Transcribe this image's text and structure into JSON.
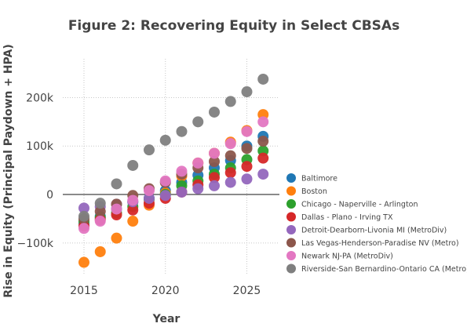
{
  "chart_data": {
    "type": "scatter",
    "title": "Figure 2: Recovering Equity in Select CBSAs",
    "xlabel": "Year",
    "ylabel": "Rise in Equity (Principal Paydown + HPA)",
    "xlim": [
      2013.7,
      2027
    ],
    "ylim": [
      -165000,
      280000
    ],
    "x_ticks": [
      2015,
      2020,
      2025
    ],
    "x_tick_labels": [
      "2015",
      "2020",
      "2025"
    ],
    "y_ticks": [
      -100000,
      0,
      100000,
      200000
    ],
    "y_tick_labels": [
      "−100k",
      "0",
      "100k",
      "200k"
    ],
    "grid": true,
    "legend_position": "right",
    "x": [
      2015,
      2016,
      2017,
      2018,
      2019,
      2020,
      2021,
      2022,
      2023,
      2024,
      2025,
      2026
    ],
    "series": [
      {
        "name": "Baltimore",
        "color": "#1f77b4",
        "values": [
          -60000,
          -45000,
          -30000,
          -15000,
          -8000,
          8000,
          25000,
          40000,
          55000,
          70000,
          100000,
          120000
        ]
      },
      {
        "name": "Boston",
        "color": "#ff7f0e",
        "values": [
          -140000,
          -118000,
          -90000,
          -55000,
          -22000,
          3000,
          38000,
          65000,
          85000,
          108000,
          132000,
          165000
        ]
      },
      {
        "name": "Chicago - Naperville - Arlington",
        "color": "#2ca02c",
        "values": [
          -55000,
          -48000,
          -38000,
          -25000,
          -10000,
          0,
          18000,
          28000,
          42000,
          55000,
          72000,
          90000
        ]
      },
      {
        "name": "Dallas - Plano - Irving TX",
        "color": "#d62728",
        "values": [
          -65000,
          -52000,
          -42000,
          -32000,
          -18000,
          -8000,
          5000,
          20000,
          35000,
          45000,
          58000,
          75000
        ]
      },
      {
        "name": "Detroit-Dearborn-Livonia MI (MetroDiv)",
        "color": "#9467bd",
        "values": [
          -28000,
          -25000,
          -20000,
          -15000,
          -8000,
          -2000,
          5000,
          12000,
          18000,
          25000,
          32000,
          42000
        ]
      },
      {
        "name": "Las Vegas-Henderson-Paradise NV (Metro)",
        "color": "#8c564b",
        "values": [
          -50000,
          -35000,
          -20000,
          -2000,
          12000,
          25000,
          42000,
          55000,
          68000,
          80000,
          95000,
          110000
        ]
      },
      {
        "name": "Newark NJ-PA (MetroDiv)",
        "color": "#e377c2",
        "values": [
          -70000,
          -55000,
          -30000,
          -12000,
          8000,
          28000,
          48000,
          65000,
          85000,
          105000,
          130000,
          150000
        ]
      },
      {
        "name": "Riverside-San Bernardino-Ontario CA (Metro)",
        "color": "#7f7f7f",
        "values": [
          -45000,
          -18000,
          22000,
          60000,
          92000,
          112000,
          130000,
          150000,
          170000,
          192000,
          212000,
          238000
        ]
      }
    ]
  }
}
